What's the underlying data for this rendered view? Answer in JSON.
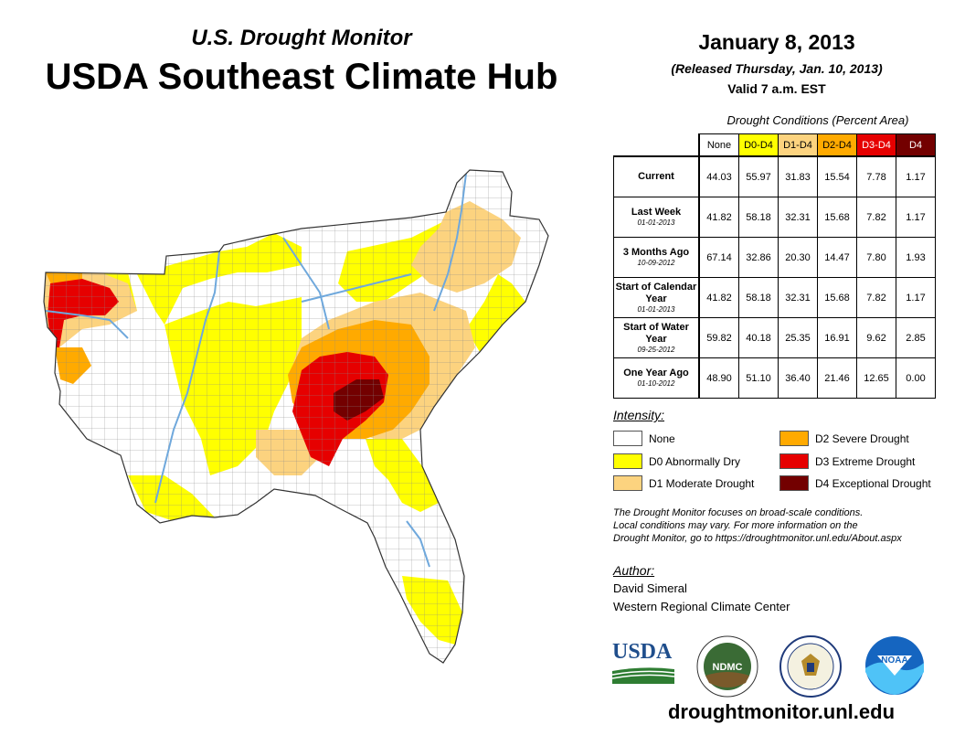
{
  "header": {
    "subtitle": "U.S. Drought Monitor",
    "title": "USDA Southeast Climate Hub"
  },
  "info": {
    "date": "January 8, 2013",
    "released": "(Released Thursday, Jan. 10, 2013)",
    "valid": "Valid 7 a.m. EST"
  },
  "table": {
    "caption": "Drought Conditions (Percent Area)",
    "columns": [
      "None",
      "D0-D4",
      "D1-D4",
      "D2-D4",
      "D3-D4",
      "D4"
    ],
    "column_colors": [
      "#ffffff",
      "#ffff00",
      "#fcd37f",
      "#ffaa00",
      "#e60000",
      "#730000"
    ],
    "rows": [
      {
        "label": "Current",
        "date": "",
        "values": [
          "44.03",
          "55.97",
          "31.83",
          "15.54",
          "7.78",
          "1.17"
        ]
      },
      {
        "label": "Last Week",
        "date": "01-01-2013",
        "values": [
          "41.82",
          "58.18",
          "32.31",
          "15.68",
          "7.82",
          "1.17"
        ]
      },
      {
        "label": "3 Months Ago",
        "date": "10-09-2012",
        "values": [
          "67.14",
          "32.86",
          "20.30",
          "14.47",
          "7.80",
          "1.93"
        ]
      },
      {
        "label": "Start of Calendar Year",
        "date": "01-01-2013",
        "values": [
          "41.82",
          "58.18",
          "32.31",
          "15.68",
          "7.82",
          "1.17"
        ]
      },
      {
        "label": "Start of Water Year",
        "date": "09-25-2012",
        "values": [
          "59.82",
          "40.18",
          "25.35",
          "16.91",
          "9.62",
          "2.85"
        ]
      },
      {
        "label": "One Year Ago",
        "date": "01-10-2012",
        "values": [
          "48.90",
          "51.10",
          "36.40",
          "21.46",
          "12.65",
          "0.00"
        ]
      }
    ]
  },
  "legend": {
    "heading": "Intensity:",
    "items": [
      {
        "label": "None",
        "color": "#ffffff"
      },
      {
        "label": "D0 Abnormally Dry",
        "color": "#ffff00"
      },
      {
        "label": "D1 Moderate Drought",
        "color": "#fcd37f"
      },
      {
        "label": "D2 Severe Drought",
        "color": "#ffaa00"
      },
      {
        "label": "D3 Extreme Drought",
        "color": "#e60000"
      },
      {
        "label": "D4 Exceptional Drought",
        "color": "#730000"
      }
    ]
  },
  "note": {
    "line1": "The Drought Monitor focuses on broad-scale conditions.",
    "line2": "Local conditions may vary. For more information on the",
    "line3": "Drought Monitor, go to https://droughtmonitor.unl.edu/About.aspx"
  },
  "author": {
    "heading": "Author:",
    "name": "David Simeral",
    "org": "Western Regional Climate Center"
  },
  "logos": {
    "usda": "USDA",
    "ndmc": "NDMC",
    "noaa": "NOAA"
  },
  "footer": {
    "url": "droughtmonitor.unl.edu"
  },
  "map": {
    "region": "Southeast United States",
    "colors": {
      "none": "#ffffff",
      "d0": "#ffff00",
      "d1": "#fcd37f",
      "d2": "#ffaa00",
      "d3": "#e60000",
      "d4": "#730000",
      "water": "#6fa8dc",
      "county_border": "#777777"
    }
  }
}
